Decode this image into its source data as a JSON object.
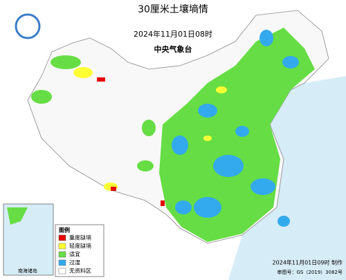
{
  "header": {
    "title": "30厘米土壤墒情",
    "time": "2024年11月01日08时",
    "agency": "中央气象台"
  },
  "legend": {
    "title": "图例",
    "items": [
      {
        "label": "重度缺墒",
        "color": "#e60000"
      },
      {
        "label": "轻度缺墒",
        "color": "#ffff33"
      },
      {
        "label": "适宜",
        "color": "#66dd44"
      },
      {
        "label": "过湿",
        "color": "#33aaee"
      },
      {
        "label": "无资料区",
        "color": "#ffffff"
      }
    ]
  },
  "inset": {
    "label": "南海诸岛"
  },
  "footer": {
    "made": "2024年11月01日09时 制作",
    "approval": "审图号：GS（2019）3082号"
  }
}
